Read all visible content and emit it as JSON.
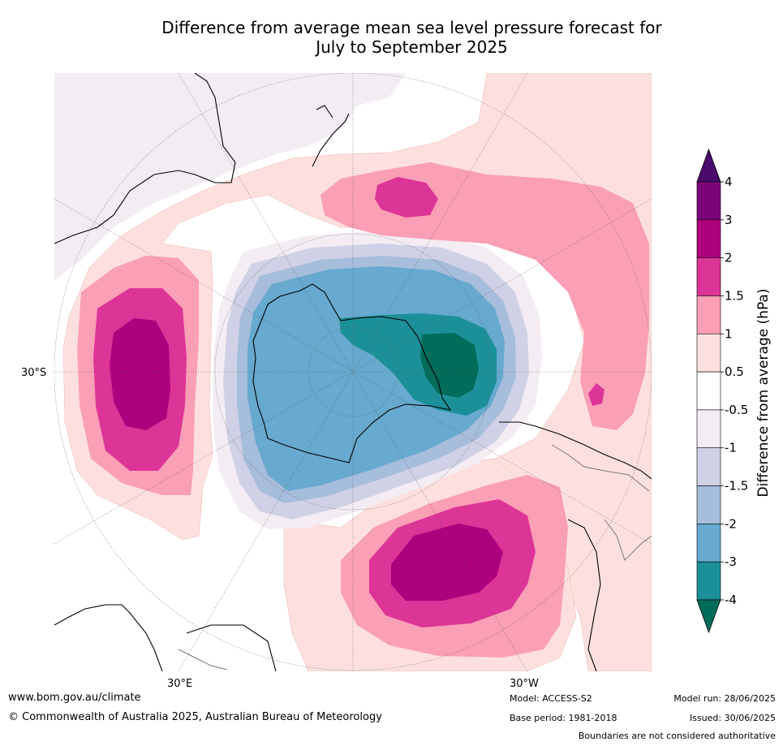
{
  "title_line1": "Difference from average mean sea level pressure forecast for",
  "title_line2": "July to September 2025",
  "map": {
    "lat_labels": [
      "30°S"
    ],
    "lon_labels": [
      "30°E",
      "30°W"
    ]
  },
  "colorbar": {
    "title": "Difference from average (hPa)",
    "ticks": [
      "4",
      "3",
      "2",
      "1.5",
      "1",
      "0.5",
      "-0.5",
      "-1",
      "-1.5",
      "-2",
      "-3",
      "-4"
    ],
    "colors_top_to_bottom": [
      "#4a0a6b",
      "#7b0578",
      "#ae017e",
      "#dd3497",
      "#fa9fb5",
      "#fde0dd",
      "#ffffff",
      "#f3edf3",
      "#d0d1e6",
      "#a6bddb",
      "#67a9cf",
      "#1c9099",
      "#016c59"
    ]
  },
  "footer": {
    "url": "www.bom.gov.au/climate",
    "copyright": "© Commonwealth of Australia 2025, Australian Bureau of Meteorology",
    "model": "Model: ACCESS-S2",
    "base_period": "Base period: 1981-2018",
    "model_run": "Model run: 28/06/2025",
    "issued": "Issued: 30/06/2025",
    "disclaimer": "Boundaries are not considered authoritative"
  }
}
